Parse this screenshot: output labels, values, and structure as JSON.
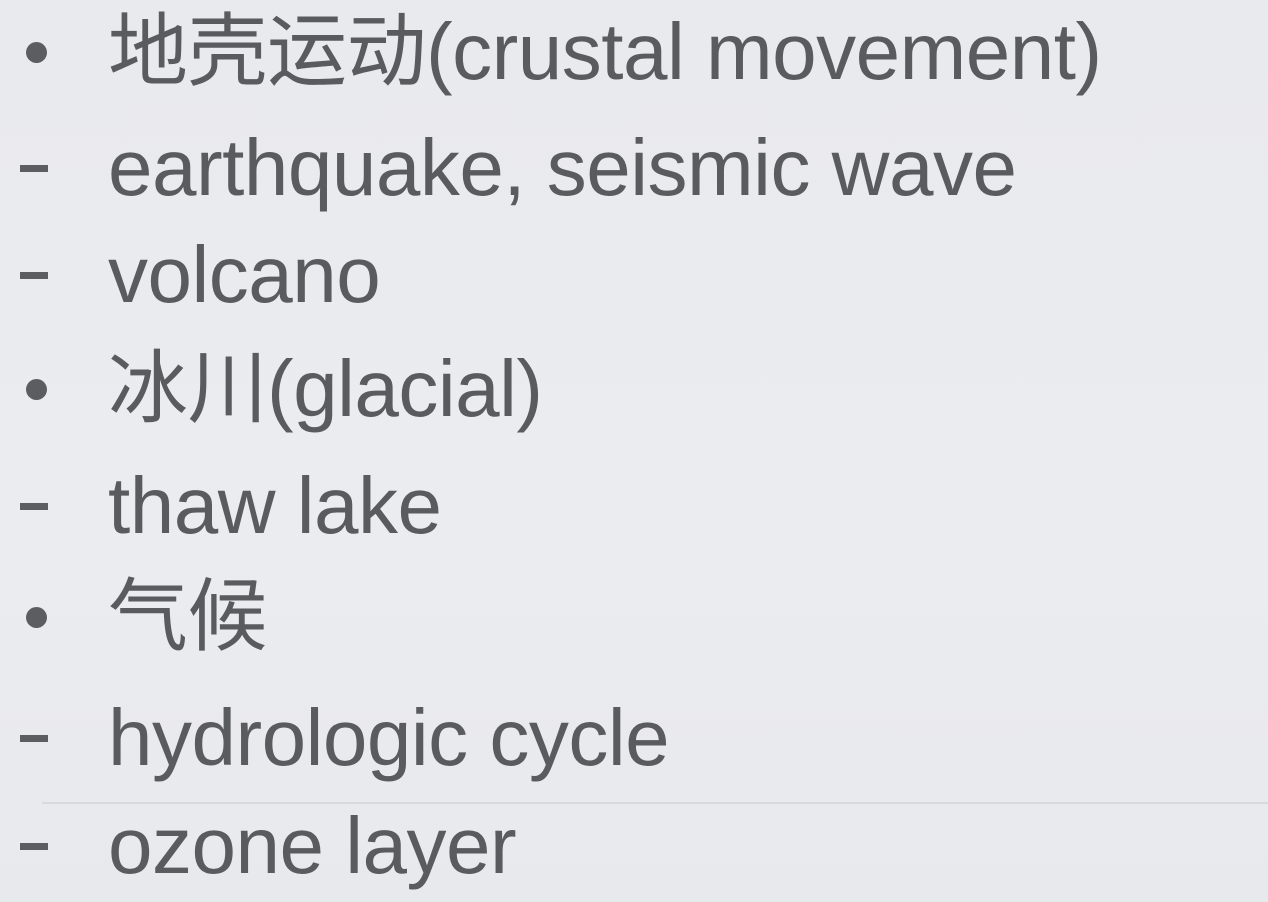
{
  "outline": {
    "items": [
      {
        "marker": "bullet",
        "text": "地壳运动(crustal movement)"
      },
      {
        "marker": "dash",
        "text": "earthquake, seismic wave"
      },
      {
        "marker": "dash",
        "text": "volcano"
      },
      {
        "marker": "bullet",
        "text": "冰川(glacial)"
      },
      {
        "marker": "dash",
        "text": "thaw lake"
      },
      {
        "marker": "bullet",
        "text": "气候"
      },
      {
        "marker": "dash",
        "text": "hydrologic cycle"
      },
      {
        "marker": "dash",
        "text": "ozone layer"
      }
    ]
  }
}
